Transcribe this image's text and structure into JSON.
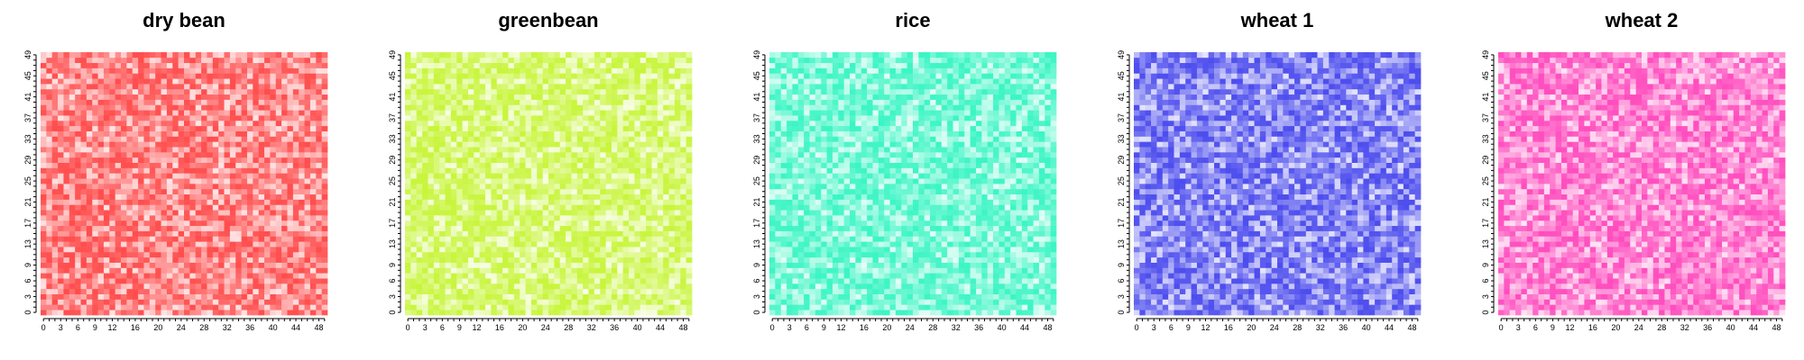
{
  "chart_data": {
    "type": "heatmap",
    "grid_size": 50,
    "x_tick_labels": [
      "0",
      "3",
      "6",
      "9",
      "12",
      "16",
      "20",
      "24",
      "28",
      "32",
      "36",
      "40",
      "44",
      "48"
    ],
    "y_tick_labels": [
      "0",
      "3",
      "6",
      "9",
      "13",
      "17",
      "21",
      "25",
      "29",
      "33",
      "37",
      "41",
      "45",
      "49"
    ],
    "x_tick_values": [
      0,
      3,
      6,
      9,
      12,
      16,
      20,
      24,
      28,
      32,
      36,
      40,
      44,
      48
    ],
    "y_tick_values": [
      0,
      3,
      6,
      9,
      13,
      17,
      21,
      25,
      29,
      33,
      37,
      41,
      45,
      49
    ],
    "xlim": [
      0,
      49
    ],
    "ylim": [
      0,
      49
    ],
    "panels": [
      {
        "title": "dry bean",
        "color": "#ff4d4d"
      },
      {
        "title": "greenbean",
        "color": "#c8f53c"
      },
      {
        "title": "rice",
        "color": "#3cf5c4"
      },
      {
        "title": "wheat 1",
        "color": "#4d4dee"
      },
      {
        "title": "wheat 2",
        "color": "#ff4dbe"
      }
    ]
  }
}
